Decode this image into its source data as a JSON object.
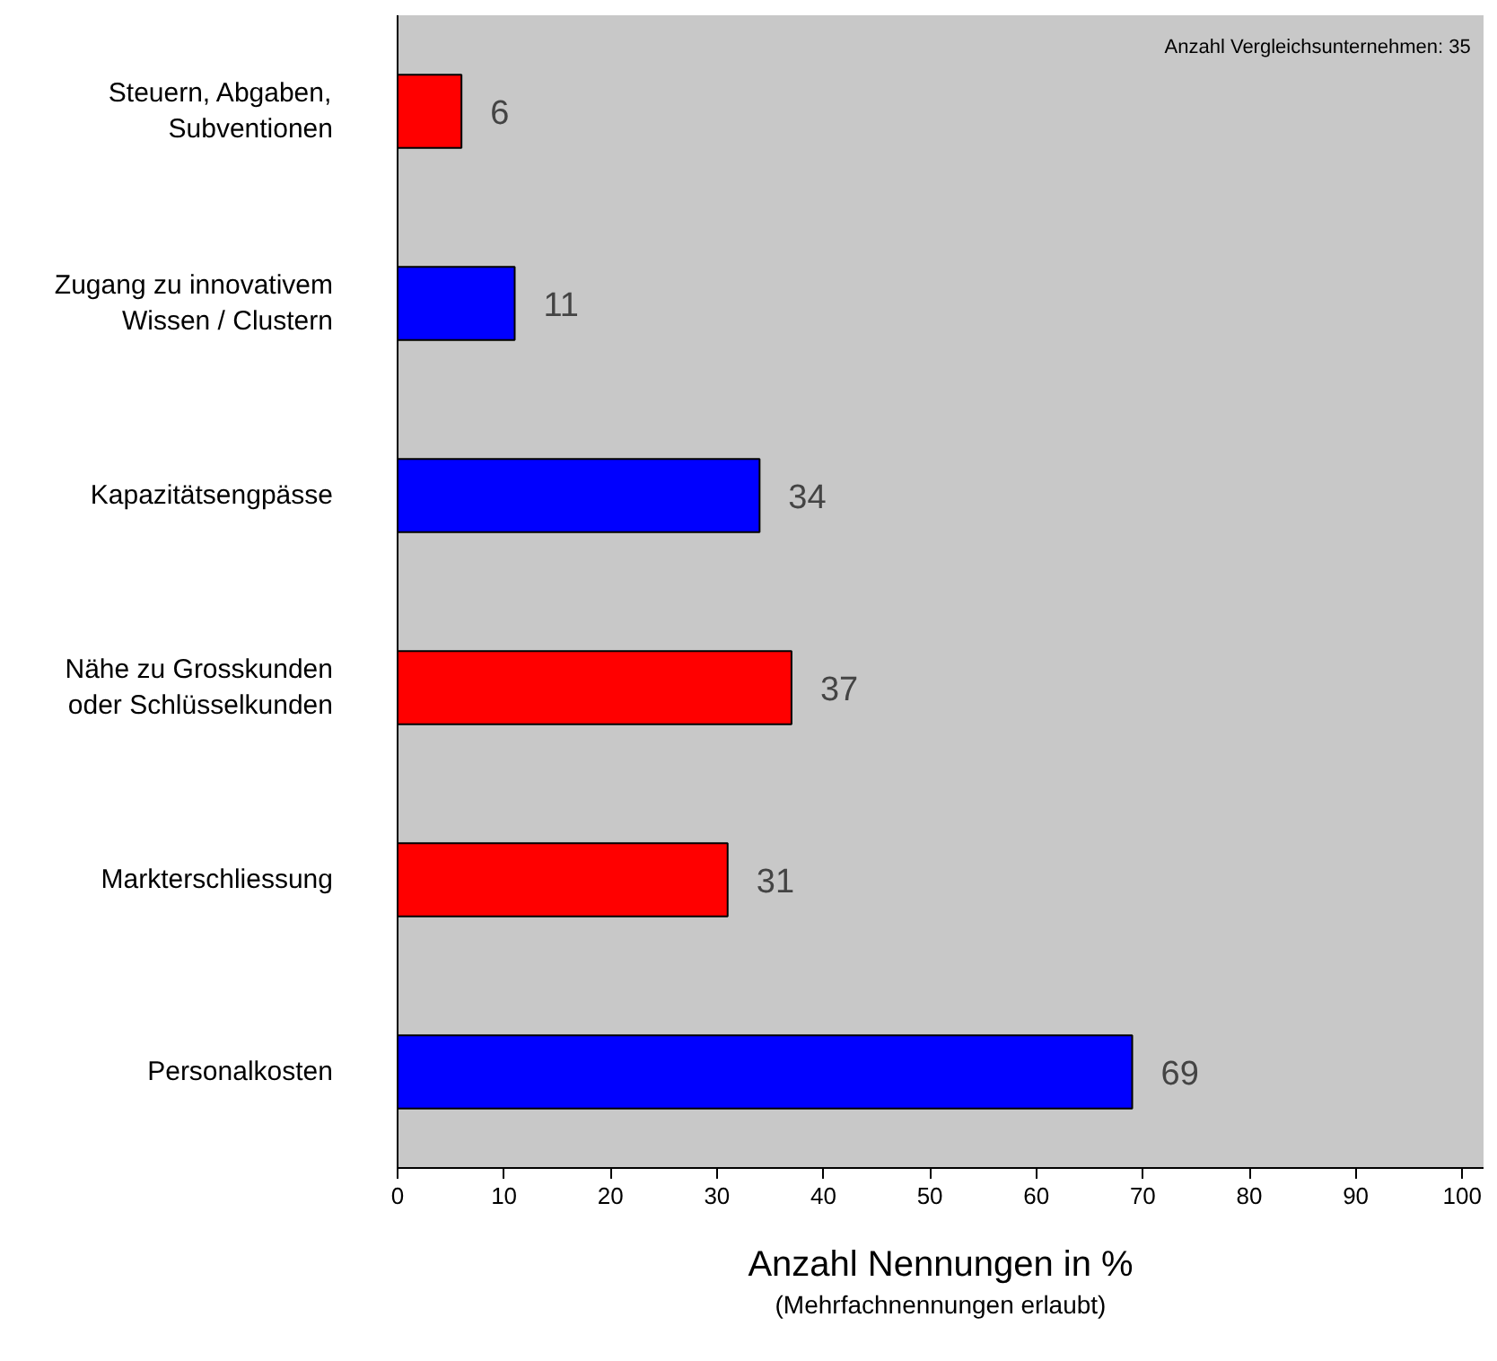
{
  "chart_data": {
    "type": "bar",
    "orientation": "horizontal",
    "categories": [
      "Steuern, Abgaben,\nSubventionen",
      "Zugang zu innovativem\nWissen / Clustern",
      "Kapazitätsengpässe",
      "Nähe zu Grosskunden\noder Schlüsselkunden",
      "Markterschliessung",
      "Personalkosten"
    ],
    "values": [
      6,
      11,
      34,
      37,
      31,
      69
    ],
    "colors": [
      "#ff0000",
      "#0000ff",
      "#0000ff",
      "#ff0000",
      "#ff0000",
      "#0000ff"
    ],
    "xlim": [
      0,
      102
    ],
    "xticks": [
      0,
      10,
      20,
      30,
      40,
      50,
      60,
      70,
      80,
      90,
      100
    ],
    "xlabel": "Anzahl Nennungen in %",
    "annotations": [
      "Anzahl Vergleichsunternehmen: 35",
      "(Mehrfachnennungen erlaubt)"
    ],
    "data_labels": true,
    "grid": false
  }
}
